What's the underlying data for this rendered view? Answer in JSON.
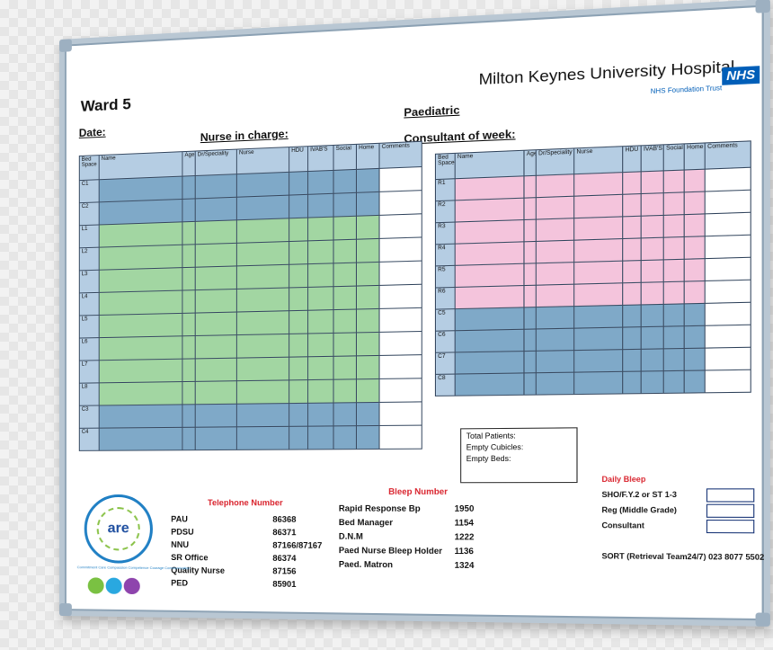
{
  "title": "Ward 5",
  "labels": {
    "date": "Date:",
    "nurse_in_charge": "Nurse in charge:",
    "paediatric": "Paediatric",
    "consultant": "Consultant of week:"
  },
  "hospital": {
    "name": "Milton Keynes University Hospital",
    "badge": "NHS",
    "trust": "NHS Foundation Trust"
  },
  "left_table": {
    "headers": [
      "Bed Space",
      "Name",
      "Age",
      "Dr/Speciality",
      "Nurse",
      "HDU",
      "IVAB'S",
      "Social",
      "Home",
      "Comments"
    ],
    "rows": [
      {
        "bed": "C1",
        "color": "blue"
      },
      {
        "bed": "C2",
        "color": "blue"
      },
      {
        "bed": "L1",
        "color": "green"
      },
      {
        "bed": "L2",
        "color": "green"
      },
      {
        "bed": "L3",
        "color": "green"
      },
      {
        "bed": "L4",
        "color": "green"
      },
      {
        "bed": "L5",
        "color": "green"
      },
      {
        "bed": "L6",
        "color": "green"
      },
      {
        "bed": "L7",
        "color": "green"
      },
      {
        "bed": "L8",
        "color": "green"
      },
      {
        "bed": "C3",
        "color": "blue"
      },
      {
        "bed": "C4",
        "color": "blue"
      }
    ]
  },
  "right_table": {
    "headers": [
      "Bed Space",
      "Name",
      "Age",
      "Dr/Speciality",
      "Nurse",
      "HDU",
      "IVAB'S",
      "Social",
      "Home",
      "Comments"
    ],
    "rows": [
      {
        "bed": "R1",
        "color": "pink"
      },
      {
        "bed": "R2",
        "color": "pink"
      },
      {
        "bed": "R3",
        "color": "pink"
      },
      {
        "bed": "R4",
        "color": "pink"
      },
      {
        "bed": "R5",
        "color": "pink"
      },
      {
        "bed": "R6",
        "color": "pink"
      },
      {
        "bed": "C5",
        "color": "blue"
      },
      {
        "bed": "C6",
        "color": "blue"
      },
      {
        "bed": "C7",
        "color": "blue"
      },
      {
        "bed": "C8",
        "color": "blue"
      }
    ]
  },
  "totals": {
    "total_patients": "Total Patients:",
    "empty_cubicles": "Empty Cubicles:",
    "empty_beds": "Empty Beds:"
  },
  "telephone": {
    "heading": "Telephone Number",
    "entries": [
      {
        "name": "PAU",
        "number": "86368"
      },
      {
        "name": "PDSU",
        "number": "86371"
      },
      {
        "name": "NNU",
        "number": "87166/87167"
      },
      {
        "name": "SR Office",
        "number": "86374"
      },
      {
        "name": "Quality Nurse",
        "number": "87156"
      },
      {
        "name": "PED",
        "number": "85901"
      }
    ]
  },
  "bleep": {
    "heading": "Bleep Number",
    "entries": [
      {
        "name": "Rapid Response Bp",
        "number": "1950"
      },
      {
        "name": "Bed Manager",
        "number": "1154"
      },
      {
        "name": "D.N.M",
        "number": "1222"
      },
      {
        "name": "Paed Nurse Bleep Holder",
        "number": "1136"
      },
      {
        "name": "Paed. Matron",
        "number": "1324"
      }
    ]
  },
  "daily_bleep": {
    "heading": "Daily Bleep",
    "entries": [
      "SHO/F.Y.2 or ST 1-3",
      "Reg (Middle Grade)",
      "Consultant"
    ]
  },
  "sort": "SORT (Retrieval Team24/7) 023 8077 5502",
  "logo": {
    "word": "are",
    "ring": "Commitment  Care  Compassion  Competence  Courage  Communication"
  },
  "colors": {
    "blue": "#7fa9c8",
    "green": "#a2d6a2",
    "pink": "#f4c4dc",
    "header": "#b5cde3",
    "nhs": "#005eb8",
    "red": "#d9232d"
  }
}
